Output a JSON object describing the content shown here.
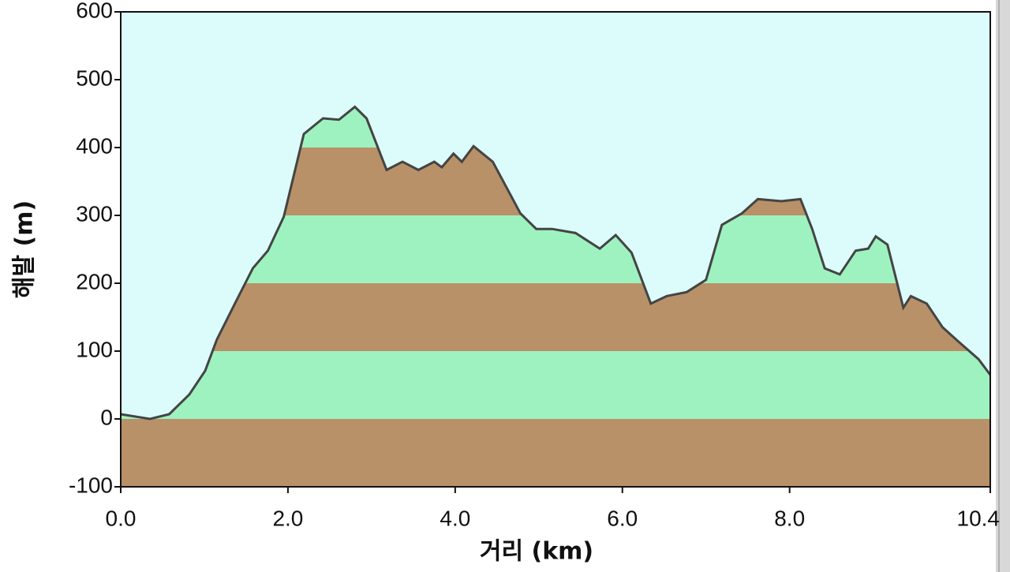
{
  "chart_data": {
    "type": "area",
    "x_label": "거리 (km)",
    "y_label": "해발 (m)",
    "x": [
      0.0,
      0.35,
      0.58,
      0.82,
      1.01,
      1.15,
      1.39,
      1.58,
      1.76,
      1.95,
      2.19,
      2.42,
      2.61,
      2.8,
      2.94,
      3.18,
      3.37,
      3.56,
      3.75,
      3.84,
      3.98,
      4.08,
      4.22,
      4.45,
      4.78,
      4.97,
      5.16,
      5.44,
      5.73,
      5.92,
      6.11,
      6.34,
      6.53,
      6.77,
      7.0,
      7.19,
      7.43,
      7.62,
      7.9,
      8.13,
      8.27,
      8.42,
      8.6,
      8.79,
      8.94,
      9.03,
      9.17,
      9.36,
      9.45,
      9.64,
      9.83,
      10.02,
      10.26,
      10.4
    ],
    "series": [
      {
        "color": "#444444",
        "values": [
          7,
          0,
          7,
          36,
          71,
          117,
          176,
          222,
          248,
          298,
          420,
          443,
          441,
          460,
          443,
          367,
          379,
          367,
          379,
          371,
          391,
          379,
          402,
          379,
          303,
          280,
          280,
          274,
          251,
          271,
          245,
          170,
          181,
          187,
          205,
          286,
          303,
          324,
          321,
          324,
          280,
          222,
          213,
          248,
          251,
          269,
          257,
          164,
          181,
          170,
          135,
          114,
          88,
          65
        ]
      }
    ],
    "xlim": [
      0,
      10.4
    ],
    "ylim": [
      -100,
      600
    ],
    "xticks": [
      {
        "value": 0,
        "label": "0.0"
      },
      {
        "value": 2,
        "label": "2.0"
      },
      {
        "value": 4,
        "label": "4.0"
      },
      {
        "value": 6,
        "label": "6.0"
      },
      {
        "value": 8,
        "label": "8.0"
      },
      {
        "value": 10.4,
        "label": "10.4"
      }
    ],
    "yticks": [
      -100,
      0,
      100,
      200,
      300,
      400,
      500,
      600
    ],
    "background": "#dcfbfb",
    "band_colors": [
      "#b89168",
      "#9ef2c0"
    ]
  }
}
